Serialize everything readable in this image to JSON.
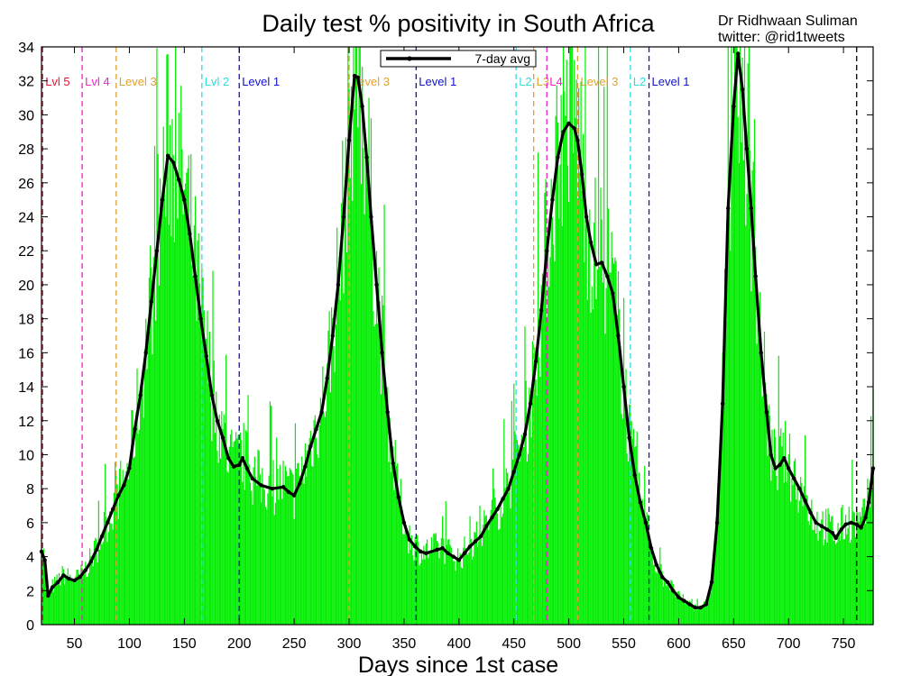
{
  "chart_data": {
    "type": "bar",
    "title": "Daily test % positivity in South Africa",
    "credit": {
      "line1": "Dr Ridhwaan Suliman",
      "line2": "twitter: @rid1tweets"
    },
    "xlabel": "Days since 1st case",
    "ylabel": "",
    "xlim": [
      20,
      777
    ],
    "ylim": [
      0,
      34
    ],
    "x_ticks": [
      50,
      100,
      150,
      200,
      250,
      300,
      350,
      400,
      450,
      500,
      550,
      600,
      650,
      700,
      750
    ],
    "y_ticks": [
      0,
      2,
      4,
      6,
      8,
      10,
      12,
      14,
      16,
      18,
      20,
      22,
      24,
      26,
      28,
      30,
      32,
      34
    ],
    "grid": false,
    "legend": {
      "position": "top-center",
      "entries": [
        "7-day avg"
      ]
    },
    "colors": {
      "daily_bars": "#00ee00",
      "avg_line": "#000000"
    },
    "series": [
      {
        "name": "7-day avg",
        "type": "line",
        "points": [
          [
            20,
            4.3
          ],
          [
            23,
            3.8
          ],
          [
            26,
            1.7
          ],
          [
            30,
            2.2
          ],
          [
            35,
            2.5
          ],
          [
            40,
            2.9
          ],
          [
            45,
            2.7
          ],
          [
            50,
            2.6
          ],
          [
            55,
            2.8
          ],
          [
            60,
            3.2
          ],
          [
            65,
            3.7
          ],
          [
            70,
            4.4
          ],
          [
            75,
            5.2
          ],
          [
            80,
            6.0
          ],
          [
            85,
            6.8
          ],
          [
            90,
            7.6
          ],
          [
            95,
            8.2
          ],
          [
            100,
            9.2
          ],
          [
            105,
            11.5
          ],
          [
            110,
            13.5
          ],
          [
            115,
            16.0
          ],
          [
            120,
            19.0
          ],
          [
            125,
            22.0
          ],
          [
            130,
            25.0
          ],
          [
            135,
            27.6
          ],
          [
            140,
            27.2
          ],
          [
            145,
            26.2
          ],
          [
            150,
            25.0
          ],
          [
            155,
            23.0
          ],
          [
            160,
            20.5
          ],
          [
            165,
            18.0
          ],
          [
            170,
            15.8
          ],
          [
            175,
            13.5
          ],
          [
            180,
            12.0
          ],
          [
            185,
            11.0
          ],
          [
            190,
            9.8
          ],
          [
            195,
            9.3
          ],
          [
            200,
            9.4
          ],
          [
            203,
            9.8
          ],
          [
            207,
            9.2
          ],
          [
            212,
            8.6
          ],
          [
            220,
            8.2
          ],
          [
            230,
            8.0
          ],
          [
            240,
            8.1
          ],
          [
            245,
            7.8
          ],
          [
            250,
            7.6
          ],
          [
            255,
            8.3
          ],
          [
            260,
            9.3
          ],
          [
            265,
            10.5
          ],
          [
            270,
            11.5
          ],
          [
            275,
            12.5
          ],
          [
            280,
            14.5
          ],
          [
            285,
            17.0
          ],
          [
            290,
            20.0
          ],
          [
            295,
            24.0
          ],
          [
            300,
            28.5
          ],
          [
            305,
            32.3
          ],
          [
            308,
            32.2
          ],
          [
            312,
            30.5
          ],
          [
            316,
            27.5
          ],
          [
            320,
            24.0
          ],
          [
            325,
            20.0
          ],
          [
            330,
            16.0
          ],
          [
            335,
            12.5
          ],
          [
            340,
            9.5
          ],
          [
            345,
            7.5
          ],
          [
            350,
            6.0
          ],
          [
            355,
            5.0
          ],
          [
            360,
            4.6
          ],
          [
            365,
            4.3
          ],
          [
            370,
            4.2
          ],
          [
            380,
            4.4
          ],
          [
            385,
            4.5
          ],
          [
            390,
            4.2
          ],
          [
            395,
            4.0
          ],
          [
            400,
            3.8
          ],
          [
            405,
            4.2
          ],
          [
            410,
            4.6
          ],
          [
            415,
            4.9
          ],
          [
            420,
            5.2
          ],
          [
            425,
            5.8
          ],
          [
            430,
            6.3
          ],
          [
            435,
            6.8
          ],
          [
            440,
            7.4
          ],
          [
            445,
            8.0
          ],
          [
            450,
            9.0
          ],
          [
            455,
            10.0
          ],
          [
            460,
            11.2
          ],
          [
            465,
            13.0
          ],
          [
            470,
            15.5
          ],
          [
            475,
            18.5
          ],
          [
            480,
            22.0
          ],
          [
            485,
            25.0
          ],
          [
            490,
            27.5
          ],
          [
            495,
            29.0
          ],
          [
            500,
            29.5
          ],
          [
            505,
            29.2
          ],
          [
            508,
            28.5
          ],
          [
            512,
            26.5
          ],
          [
            516,
            24.0
          ],
          [
            520,
            22.5
          ],
          [
            525,
            21.2
          ],
          [
            530,
            21.3
          ],
          [
            535,
            20.5
          ],
          [
            540,
            19.5
          ],
          [
            545,
            17.0
          ],
          [
            550,
            14.0
          ],
          [
            555,
            11.0
          ],
          [
            560,
            8.8
          ],
          [
            565,
            7.2
          ],
          [
            570,
            6.0
          ],
          [
            575,
            4.5
          ],
          [
            580,
            3.5
          ],
          [
            585,
            2.8
          ],
          [
            590,
            2.5
          ],
          [
            595,
            2.0
          ],
          [
            600,
            1.6
          ],
          [
            605,
            1.4
          ],
          [
            610,
            1.2
          ],
          [
            615,
            1.0
          ],
          [
            620,
            1.0
          ],
          [
            625,
            1.2
          ],
          [
            630,
            2.5
          ],
          [
            635,
            6.0
          ],
          [
            640,
            13.0
          ],
          [
            645,
            24.5
          ],
          [
            650,
            30.5
          ],
          [
            654,
            33.6
          ],
          [
            658,
            31.5
          ],
          [
            662,
            28.0
          ],
          [
            666,
            24.5
          ],
          [
            670,
            20.5
          ],
          [
            675,
            16.0
          ],
          [
            680,
            12.5
          ],
          [
            684,
            10.0
          ],
          [
            688,
            9.2
          ],
          [
            692,
            9.4
          ],
          [
            696,
            9.8
          ],
          [
            700,
            9.2
          ],
          [
            705,
            8.6
          ],
          [
            710,
            8.0
          ],
          [
            715,
            7.3
          ],
          [
            720,
            6.6
          ],
          [
            725,
            6.0
          ],
          [
            730,
            5.8
          ],
          [
            735,
            5.6
          ],
          [
            740,
            5.4
          ],
          [
            743,
            5.1
          ],
          [
            748,
            5.6
          ],
          [
            752,
            5.9
          ],
          [
            757,
            6.0
          ],
          [
            762,
            5.9
          ],
          [
            766,
            5.7
          ],
          [
            770,
            6.3
          ],
          [
            773,
            7.2
          ],
          [
            777,
            9.2
          ]
        ]
      }
    ],
    "alert_levels": [
      {
        "day": 21,
        "label": "Lvl 5",
        "color": "#e8112d"
      },
      {
        "day": 57,
        "label": "Lvl 4",
        "color": "#ee22cc"
      },
      {
        "day": 88,
        "label": "Level 3",
        "color": "#e0a030"
      },
      {
        "day": 166,
        "label": "Lvl 2",
        "color": "#33dddd"
      },
      {
        "day": 200,
        "label": "Level 1",
        "color": "#1111cc"
      },
      {
        "day": 300,
        "label": "Level 3",
        "color": "#e0a030"
      },
      {
        "day": 361,
        "label": "Level 1",
        "color": "#1111cc"
      },
      {
        "day": 452,
        "label": "L2",
        "color": "#33dddd"
      },
      {
        "day": 468,
        "label": "L3",
        "color": "#e0a030"
      },
      {
        "day": 480,
        "label": "L4",
        "color": "#ee22cc"
      },
      {
        "day": 508,
        "label": "Level 3",
        "color": "#e0a030"
      },
      {
        "day": 556,
        "label": "L2",
        "color": "#33dddd"
      },
      {
        "day": 573,
        "label": "Level 1",
        "color": "#1111cc"
      },
      {
        "day": 762,
        "label": "",
        "color": "#000000"
      }
    ]
  }
}
